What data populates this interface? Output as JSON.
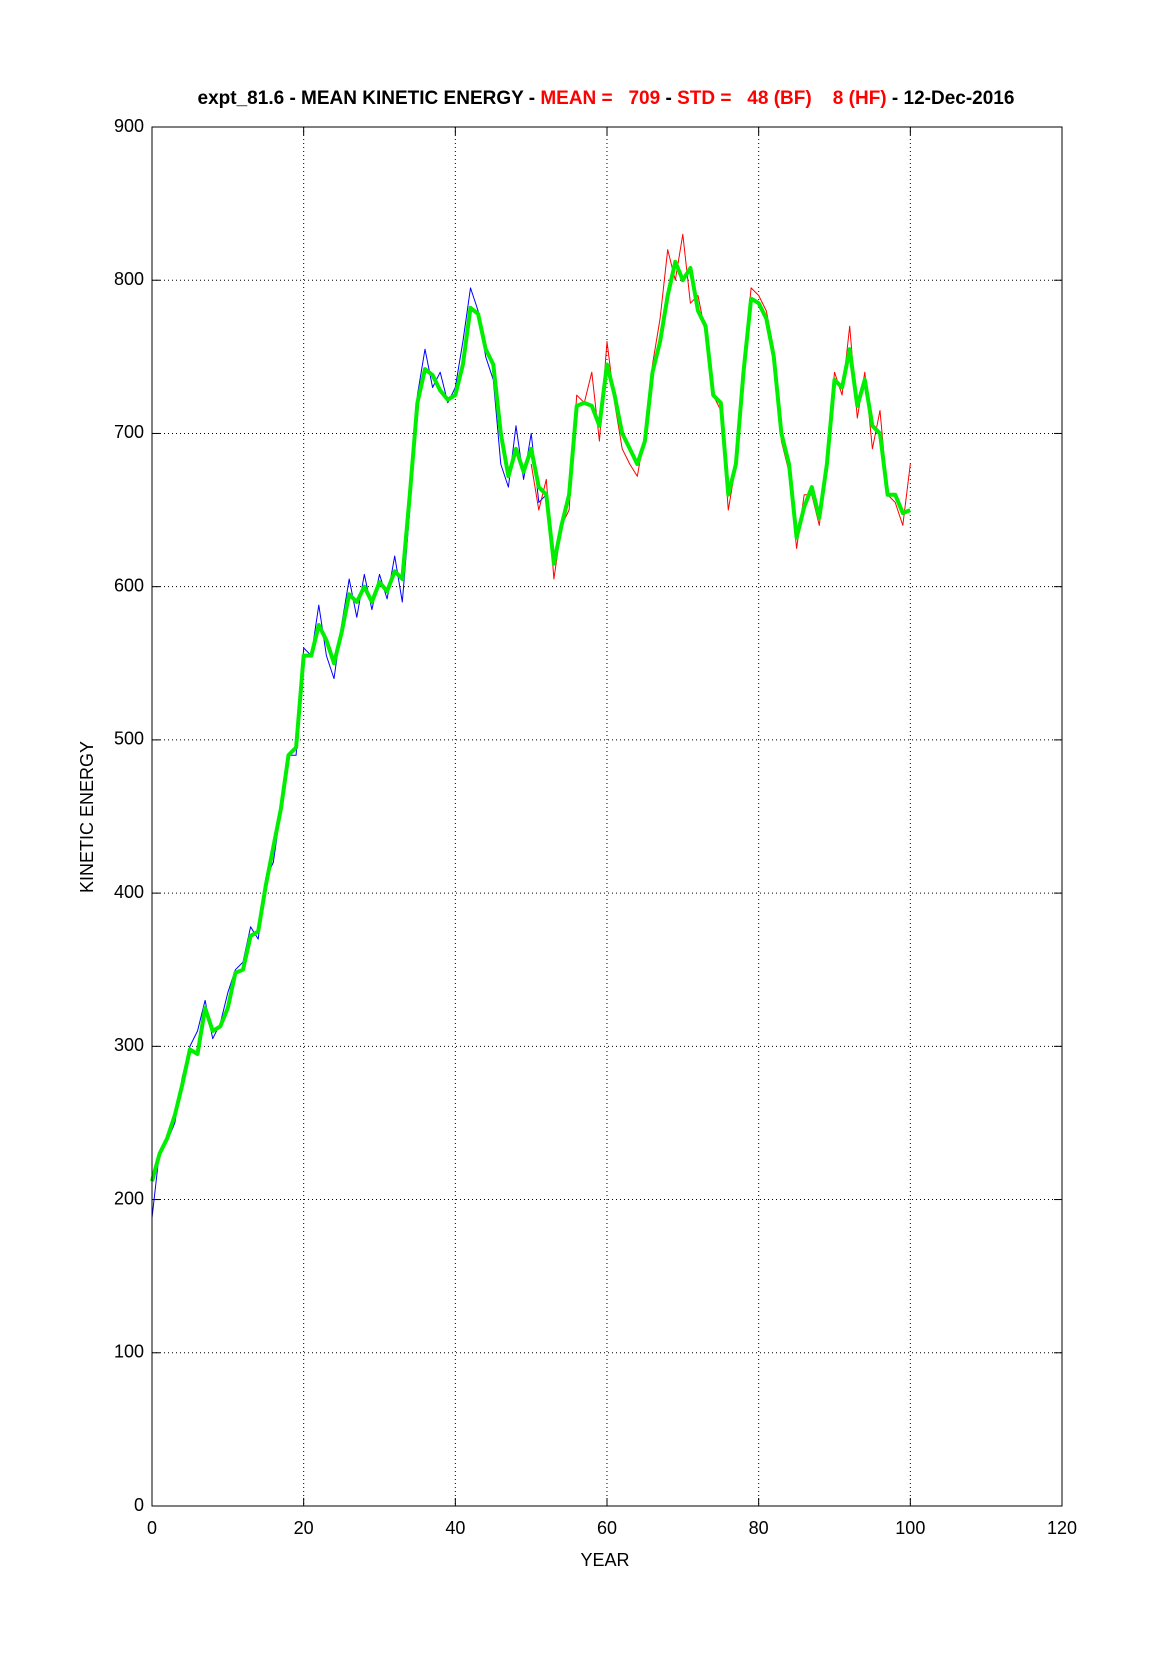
{
  "chart_data": {
    "type": "line",
    "title_parts": [
      {
        "text": "expt_81.6 - MEAN KINETIC ENERGY - ",
        "color": "#000000"
      },
      {
        "text": "MEAN =   709",
        "color": "#ff0000"
      },
      {
        "text": " - ",
        "color": "#000000"
      },
      {
        "text": "STD =   48 (BF)    8 (HF)",
        "color": "#ff0000"
      },
      {
        "text": " - 12-Dec-2016",
        "color": "#000000"
      }
    ],
    "x_label": "YEAR",
    "y_label": "KINETIC ENERGY",
    "xlim": [
      0,
      120
    ],
    "xticks": [
      0,
      20,
      40,
      60,
      80,
      100,
      120
    ],
    "ylim": [
      0,
      900
    ],
    "yticks": [
      0,
      100,
      200,
      300,
      400,
      500,
      600,
      700,
      800,
      900
    ],
    "grid": true,
    "series": [
      {
        "color": "#0000ff",
        "width": 1,
        "x": [
          0,
          1,
          2,
          3,
          4,
          5,
          6,
          7,
          8,
          9,
          10,
          11,
          12,
          13,
          14,
          15,
          16,
          17,
          18,
          19,
          20,
          21,
          22,
          23,
          24,
          25,
          26,
          27,
          28,
          29,
          30,
          31,
          32,
          33,
          34,
          35,
          36,
          37,
          38,
          39,
          40,
          41,
          42,
          43,
          44,
          45,
          46,
          47,
          48,
          49,
          50,
          51,
          52
        ],
        "values": [
          188,
          232,
          238,
          250,
          280,
          300,
          310,
          330,
          305,
          315,
          335,
          350,
          355,
          378,
          370,
          410,
          420,
          455,
          490,
          490,
          560,
          555,
          588,
          555,
          540,
          575,
          605,
          580,
          608,
          585,
          608,
          592,
          620,
          590,
          650,
          725,
          755,
          730,
          740,
          720,
          730,
          760,
          795,
          780,
          750,
          735,
          680,
          665,
          705,
          670,
          700,
          655,
          660
        ]
      },
      {
        "color": "#ff0000",
        "width": 1,
        "x": [
          50,
          51,
          52,
          53,
          54,
          55,
          56,
          57,
          58,
          59,
          60,
          61,
          62,
          63,
          64,
          65,
          66,
          67,
          68,
          69,
          70,
          71,
          72,
          73,
          74,
          75,
          76,
          77,
          78,
          79,
          80,
          81,
          82,
          83,
          84,
          85,
          86,
          87,
          88,
          89,
          90,
          91,
          92,
          93,
          94,
          95,
          96,
          97,
          98,
          99,
          100
        ],
        "values": [
          680,
          650,
          670,
          605,
          640,
          650,
          725,
          720,
          740,
          695,
          760,
          720,
          690,
          680,
          672,
          700,
          745,
          775,
          820,
          800,
          830,
          785,
          790,
          765,
          725,
          715,
          650,
          680,
          745,
          795,
          790,
          780,
          755,
          695,
          675,
          625,
          660,
          660,
          640,
          685,
          740,
          725,
          770,
          710,
          740,
          690,
          715,
          660,
          655,
          640,
          680
        ]
      },
      {
        "color": "#00ee00",
        "width": 4,
        "x": [
          0,
          1,
          2,
          3,
          4,
          5,
          6,
          7,
          8,
          9,
          10,
          11,
          12,
          13,
          14,
          15,
          16,
          17,
          18,
          19,
          20,
          21,
          22,
          23,
          24,
          25,
          26,
          27,
          28,
          29,
          30,
          31,
          32,
          33,
          34,
          35,
          36,
          37,
          38,
          39,
          40,
          41,
          42,
          43,
          44,
          45,
          46,
          47,
          48,
          49,
          50,
          51,
          52,
          53,
          54,
          55,
          56,
          57,
          58,
          59,
          60,
          61,
          62,
          63,
          64,
          65,
          66,
          67,
          68,
          69,
          70,
          71,
          72,
          73,
          74,
          75,
          76,
          77,
          78,
          79,
          80,
          81,
          82,
          83,
          84,
          85,
          86,
          87,
          88,
          89,
          90,
          91,
          92,
          93,
          94,
          95,
          96,
          97,
          98,
          99,
          100
        ],
        "values": [
          212,
          230,
          240,
          255,
          275,
          298,
          295,
          325,
          310,
          313,
          325,
          348,
          350,
          372,
          375,
          405,
          430,
          455,
          490,
          495,
          555,
          555,
          575,
          565,
          550,
          570,
          595,
          590,
          600,
          590,
          603,
          597,
          610,
          605,
          660,
          720,
          742,
          738,
          728,
          722,
          725,
          745,
          782,
          778,
          755,
          745,
          700,
          672,
          690,
          675,
          690,
          665,
          660,
          615,
          640,
          660,
          718,
          720,
          718,
          705,
          745,
          725,
          700,
          690,
          680,
          695,
          740,
          760,
          790,
          812,
          800,
          808,
          780,
          770,
          725,
          720,
          660,
          680,
          740,
          788,
          785,
          775,
          750,
          700,
          680,
          632,
          652,
          665,
          645,
          680,
          735,
          730,
          755,
          718,
          735,
          705,
          700,
          660,
          660,
          648,
          650
        ]
      }
    ]
  }
}
